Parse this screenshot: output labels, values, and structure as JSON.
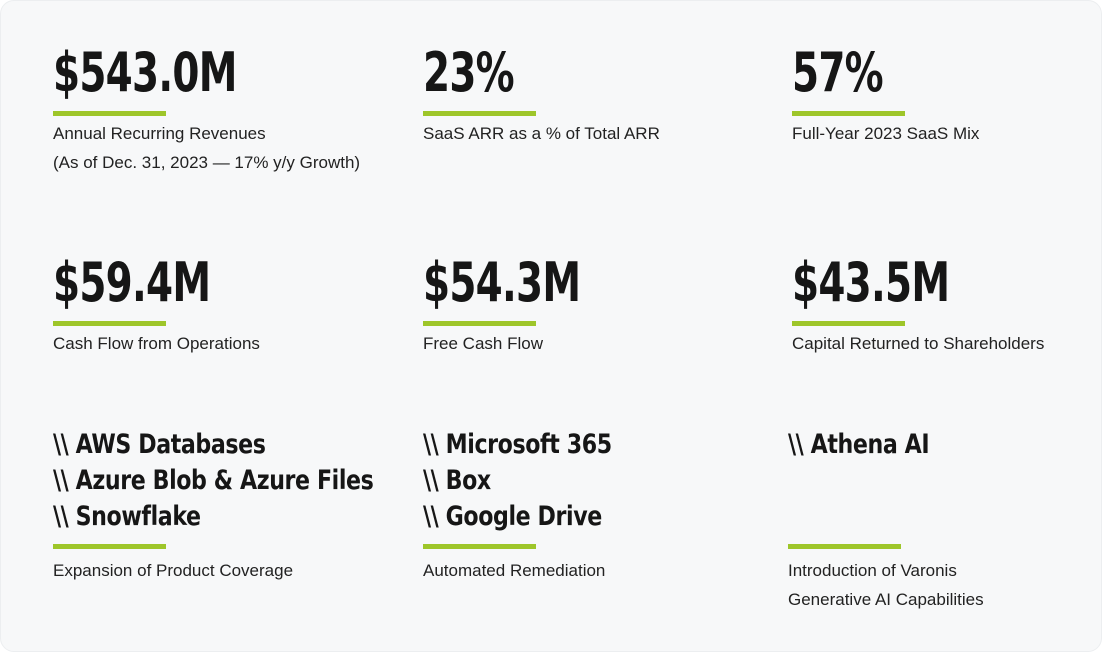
{
  "metrics": [
    {
      "value": "$543.0M",
      "label": "Annual Recurring Revenues",
      "sublabel": "(As of Dec. 31, 2023 — 17% y/y Growth)"
    },
    {
      "value": "23%",
      "label": "SaaS ARR as a % of Total ARR"
    },
    {
      "value": "57%",
      "label": "Full-Year 2023 SaaS Mix"
    },
    {
      "value": "$59.4M",
      "label": "Cash Flow from Operations"
    },
    {
      "value": "$54.3M",
      "label": "Free Cash Flow"
    },
    {
      "value": "$43.5M",
      "label": "Capital Returned to Shareholders"
    }
  ],
  "products": [
    {
      "items": [
        "\\\\ AWS Databases",
        "\\\\ Azure Blob & Azure Files",
        "\\\\ Snowflake"
      ],
      "label": "Expansion of Product Coverage"
    },
    {
      "items": [
        "\\\\ Microsoft 365",
        "\\\\ Box",
        "\\\\ Google Drive"
      ],
      "label": "Automated Remediation"
    },
    {
      "items": [
        "\\\\ Athena AI"
      ],
      "label": "Introduction of Varonis",
      "sublabel": "Generative AI Capabilities"
    }
  ],
  "colors": {
    "accent": "#9ec62a",
    "background": "#f7f8f9",
    "text": "#161616"
  }
}
